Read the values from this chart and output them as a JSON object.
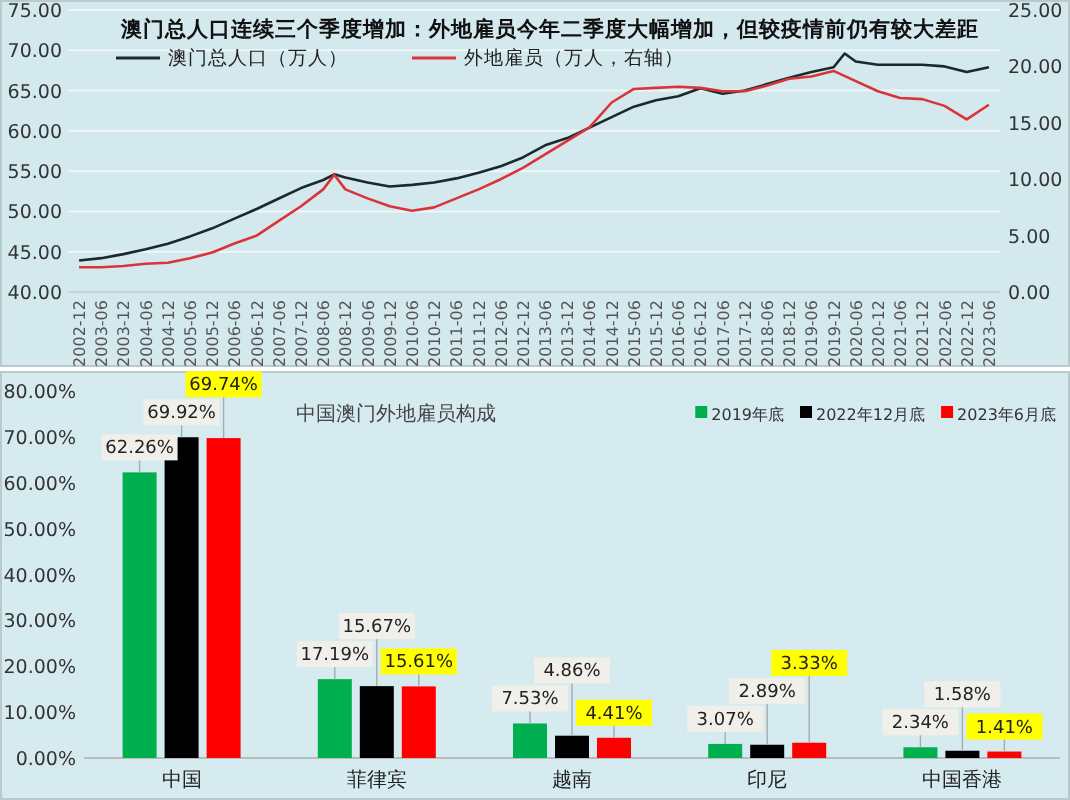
{
  "chart_data": [
    {
      "type": "line",
      "title": "澳门总人口连续三个季度增加：外地雇员今年二季度大幅增加，但较疫情前仍有较大差距",
      "legend": "top left",
      "grid": "y",
      "xlim": [
        "2002-09",
        "2023-09"
      ],
      "xticks": [
        "2002-12",
        "2003-06",
        "2003-12",
        "2004-06",
        "2004-12",
        "2005-06",
        "2005-12",
        "2006-06",
        "2006-12",
        "2007-06",
        "2007-12",
        "2008-06",
        "2008-12",
        "2009-06",
        "2009-12",
        "2010-06",
        "2010-12",
        "2011-06",
        "2011-12",
        "2012-06",
        "2012-12",
        "2013-06",
        "2013-12",
        "2014-06",
        "2014-12",
        "2015-06",
        "2015-12",
        "2016-06",
        "2016-12",
        "2017-06",
        "2017-12",
        "2018-06",
        "2018-12",
        "2019-06",
        "2019-12",
        "2020-06",
        "2020-12",
        "2021-06",
        "2021-12",
        "2022-06",
        "2022-12",
        "2023-06"
      ],
      "ylim": [
        40,
        75
      ],
      "yticks": [
        {
          "value": 40,
          "label": "40.00"
        },
        {
          "value": 45,
          "label": "45.00"
        },
        {
          "value": 50,
          "label": "50.00"
        },
        {
          "value": 55,
          "label": "55.00"
        },
        {
          "value": 60,
          "label": "60.00"
        },
        {
          "value": 65,
          "label": "65.00"
        },
        {
          "value": 70,
          "label": "70.00"
        },
        {
          "value": 75,
          "label": "75.00"
        }
      ],
      "y2lim": [
        0,
        25
      ],
      "y2ticks": [
        {
          "value": 0,
          "label": "0.00"
        },
        {
          "value": 5,
          "label": "5.00"
        },
        {
          "value": 10,
          "label": "10.00"
        },
        {
          "value": 15,
          "label": "15.00"
        },
        {
          "value": 20,
          "label": "20.00"
        },
        {
          "value": 25,
          "label": "25.00"
        }
      ],
      "series": [
        {
          "name": "澳门总人口（万人）",
          "color": "#1a2a2a",
          "x": [
            "2002-12",
            "2003-06",
            "2003-12",
            "2004-06",
            "2004-12",
            "2005-06",
            "2005-12",
            "2006-06",
            "2006-12",
            "2007-06",
            "2007-12",
            "2008-06",
            "2008-09",
            "2008-12",
            "2009-06",
            "2009-12",
            "2010-06",
            "2010-12",
            "2011-06",
            "2011-12",
            "2012-06",
            "2012-12",
            "2013-06",
            "2013-12",
            "2014-06",
            "2014-12",
            "2015-06",
            "2015-12",
            "2016-06",
            "2016-12",
            "2017-06",
            "2017-12",
            "2018-06",
            "2018-12",
            "2019-06",
            "2019-12",
            "2020-03",
            "2020-06",
            "2020-12",
            "2021-06",
            "2021-12",
            "2022-06",
            "2022-12",
            "2023-06"
          ],
          "values": [
            43.9,
            44.2,
            44.7,
            45.3,
            46.0,
            46.9,
            47.9,
            49.1,
            50.3,
            51.6,
            52.9,
            53.9,
            54.6,
            54.2,
            53.6,
            53.1,
            53.3,
            53.6,
            54.1,
            54.8,
            55.6,
            56.7,
            58.2,
            59.1,
            60.4,
            61.7,
            63.0,
            63.8,
            64.3,
            65.3,
            64.6,
            65.0,
            65.8,
            66.6,
            67.3,
            67.9,
            69.6,
            68.6,
            68.2,
            68.2,
            68.2,
            68.0,
            67.3,
            67.9
          ]
        },
        {
          "name": "外地雇员（万人，右轴）",
          "color": "#d9343a",
          "axis": "y2",
          "x": [
            "2002-12",
            "2003-06",
            "2003-12",
            "2004-06",
            "2004-12",
            "2005-06",
            "2005-12",
            "2006-06",
            "2006-12",
            "2007-06",
            "2007-12",
            "2008-06",
            "2008-09",
            "2008-12",
            "2009-06",
            "2009-12",
            "2010-06",
            "2010-12",
            "2011-06",
            "2011-12",
            "2012-06",
            "2012-12",
            "2013-06",
            "2013-12",
            "2014-06",
            "2014-12",
            "2015-06",
            "2015-12",
            "2016-06",
            "2016-12",
            "2017-06",
            "2017-12",
            "2018-06",
            "2018-12",
            "2019-06",
            "2019-12",
            "2020-06",
            "2020-12",
            "2021-06",
            "2021-12",
            "2022-06",
            "2022-12",
            "2023-06"
          ],
          "values": [
            2.2,
            2.2,
            2.3,
            2.5,
            2.6,
            3.0,
            3.5,
            4.3,
            5.0,
            6.3,
            7.6,
            9.1,
            10.4,
            9.1,
            8.3,
            7.6,
            7.2,
            7.5,
            8.3,
            9.1,
            10.0,
            11.0,
            12.2,
            13.4,
            14.6,
            16.8,
            18.0,
            18.1,
            18.2,
            18.1,
            17.8,
            17.8,
            18.3,
            18.9,
            19.1,
            19.6,
            18.7,
            17.8,
            17.2,
            17.1,
            16.5,
            15.3,
            16.6
          ]
        }
      ]
    },
    {
      "type": "bar",
      "title": "中国澳门外地雇员构成",
      "legend": "top right",
      "categories": [
        "中国",
        "菲律宾",
        "越南",
        "印尼",
        "中国香港"
      ],
      "ylim": [
        0,
        80
      ],
      "yticks": [
        {
          "value": 0,
          "label": "0.00%"
        },
        {
          "value": 10,
          "label": "10.00%"
        },
        {
          "value": 20,
          "label": "20.00%"
        },
        {
          "value": 30,
          "label": "30.00%"
        },
        {
          "value": 40,
          "label": "40.00%"
        },
        {
          "value": 50,
          "label": "50.00%"
        },
        {
          "value": 60,
          "label": "60.00%"
        },
        {
          "value": 70,
          "label": "70.00%"
        },
        {
          "value": 80,
          "label": "80.00%"
        }
      ],
      "series": [
        {
          "name": "2019年底",
          "color": "#00b050",
          "values": [
            62.26,
            17.19,
            7.53,
            3.07,
            2.34
          ],
          "value_labels": [
            "62.26%",
            "17.19%",
            "7.53%",
            "3.07%",
            "2.34%"
          ]
        },
        {
          "name": "2022年12月底",
          "color": "#000000",
          "values": [
            69.92,
            15.67,
            4.86,
            2.89,
            1.58
          ],
          "value_labels": [
            "69.92%",
            "15.67%",
            "4.86%",
            "2.89%",
            "1.58%"
          ]
        },
        {
          "name": "2023年6月底",
          "color": "#ff0000",
          "values": [
            69.74,
            15.61,
            4.41,
            3.33,
            1.41
          ],
          "value_labels": [
            "69.74%",
            "15.61%",
            "4.41%",
            "3.33%",
            "1.41%"
          ]
        }
      ]
    }
  ]
}
